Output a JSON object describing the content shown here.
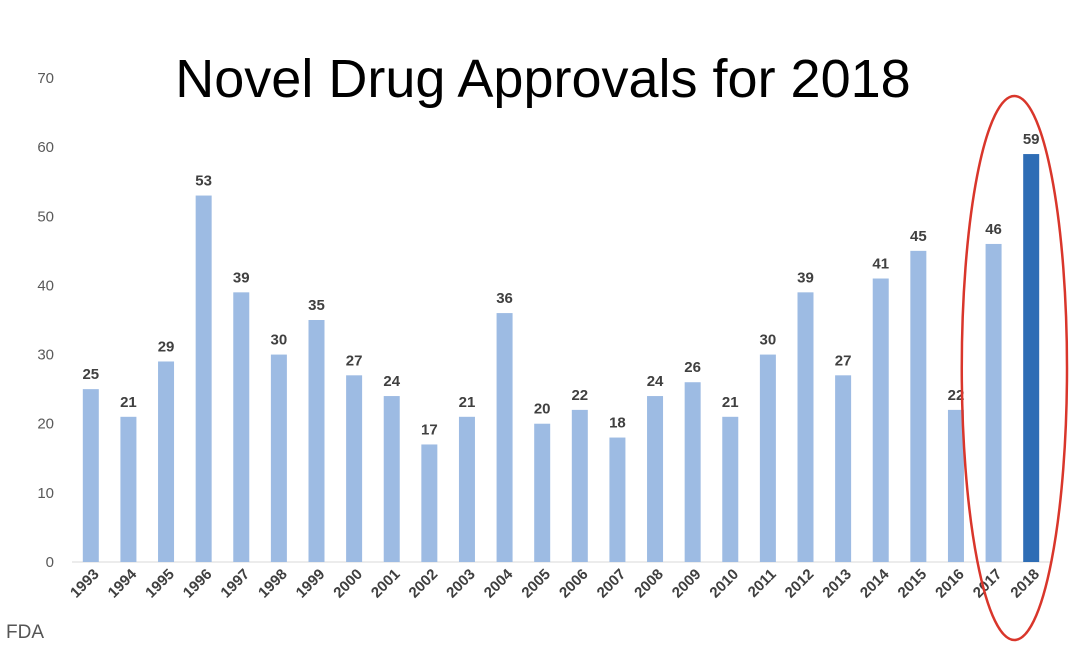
{
  "source_label": "FDA",
  "chart_data": {
    "type": "bar",
    "title": "Novel Drug Approvals for 2018",
    "xlabel": "",
    "ylabel": "",
    "categories": [
      "1993",
      "1994",
      "1995",
      "1996",
      "1997",
      "1998",
      "1999",
      "2000",
      "2001",
      "2002",
      "2003",
      "2004",
      "2005",
      "2006",
      "2007",
      "2008",
      "2009",
      "2010",
      "2011",
      "2012",
      "2013",
      "2014",
      "2015",
      "2016",
      "2017",
      "2018"
    ],
    "values": [
      25,
      21,
      29,
      53,
      39,
      30,
      35,
      27,
      24,
      17,
      21,
      36,
      20,
      22,
      18,
      24,
      26,
      21,
      30,
      39,
      27,
      41,
      45,
      22,
      46,
      59
    ],
    "ylim": [
      0,
      70
    ],
    "yticks": [
      0,
      10,
      20,
      30,
      40,
      50,
      60,
      70
    ],
    "grid": false,
    "legend": "none",
    "data_labels": true,
    "bar_color": "#9dbbe3",
    "highlight_color": "#2e6db5",
    "highlight_category": "2018",
    "annotation": {
      "shape": "ellipse",
      "color": "#d9362b",
      "encloses": [
        "2017",
        "2018"
      ]
    }
  }
}
